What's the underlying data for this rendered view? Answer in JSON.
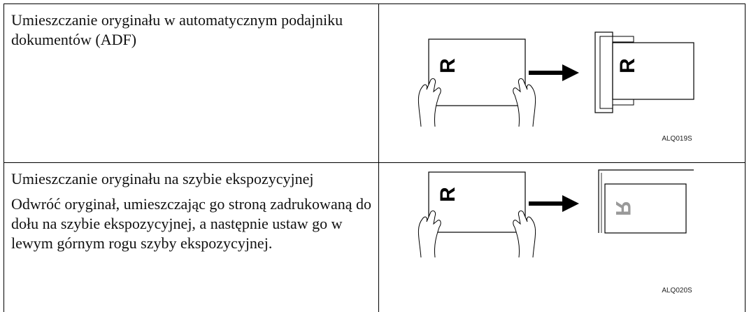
{
  "table": {
    "rows": [
      {
        "title": "Umieszczanie oryginału w automatycznym podajniku dokumentów (ADF)",
        "figure": {
          "letter": "R",
          "code": "ALQ019S"
        }
      },
      {
        "title": "Umieszczanie oryginału na szybie ekspozycyjnej",
        "description": "Odwróć oryginał, umieszczając go stroną zadrukowaną do dołu na szybie ekspozycyjnej, a następnie ustaw go w lewym górnym rogu szyby ekspozycyjnej.",
        "figure": {
          "letter": "R",
          "code": "ALQ020S"
        }
      }
    ]
  }
}
